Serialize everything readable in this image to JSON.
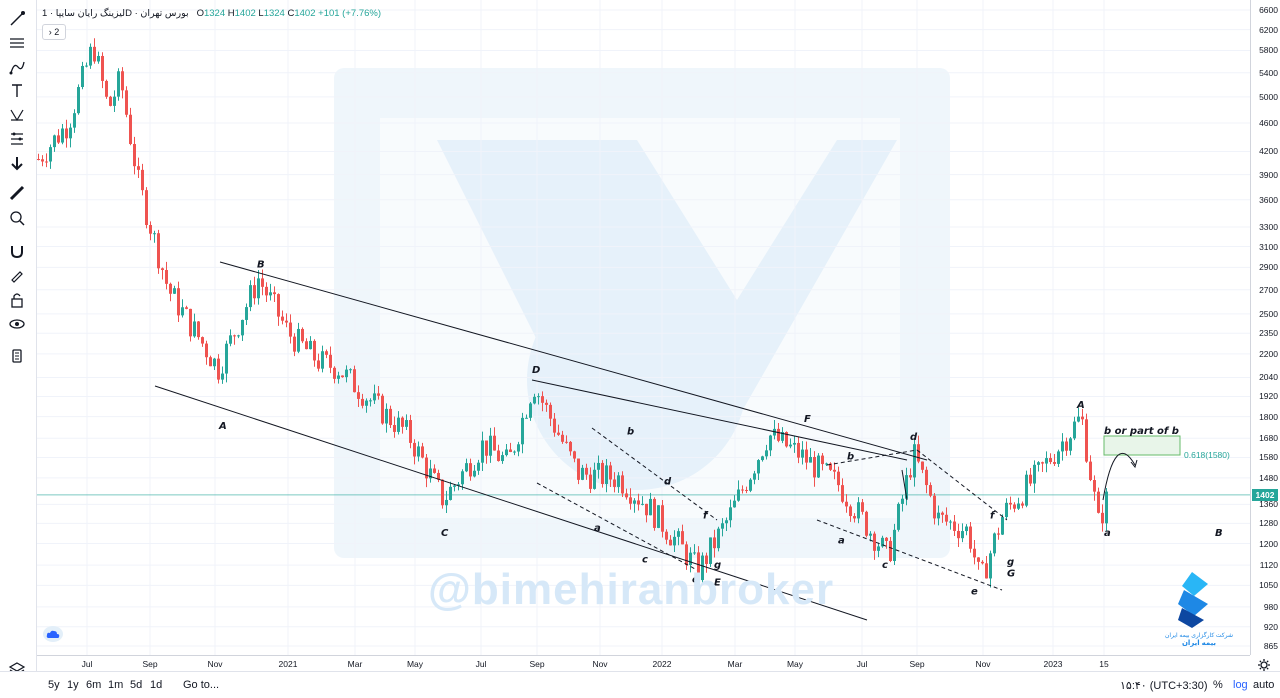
{
  "legend": {
    "symbol": "لیزینگ رایان سایپا",
    "separator": "·",
    "interval": "1D",
    "exchange": "بورس تهران",
    "open_label": "O",
    "open": "1324",
    "high_label": "H",
    "high": "1402",
    "low_label": "L",
    "low": "1324",
    "close_label": "C",
    "close": "1402",
    "change": "+101 (+7.76%)",
    "indicators_collapsed": "2"
  },
  "toolbar_icons": [
    "cursor-cross-icon",
    "trend-line-icon",
    "fib-retracement-icon",
    "brush-icon",
    "text-icon",
    "pattern-icon",
    "prediction-icon",
    "arrow-down-icon",
    "ruler-icon",
    "zoom-in-icon",
    "magnet-icon",
    "lock-drawings-icon",
    "unlock-icon",
    "eye-icon",
    "trash-icon",
    "layers-icon"
  ],
  "bottom_bar": {
    "ranges": [
      "5y",
      "1y",
      "6m",
      "1m",
      "5d",
      "1d"
    ],
    "goto": "Go to...",
    "clock": "۱۵:۴۰ (UTC+3:30)",
    "percent": "%",
    "log": "log",
    "auto": "auto"
  },
  "watermark": "@bimehiranbroker",
  "logo_caption": "شرکت کارگزاری بیمه ایران",
  "logo_subcaption": "بیمه ایران",
  "colors": {
    "up": "#26a69a",
    "down": "#ef5350",
    "watermark": "#d6e8f8",
    "brand": "#1e88e5"
  },
  "chart_data": {
    "type": "candlestick",
    "y_scale": "log",
    "y_ticks": [
      865,
      920,
      980,
      1050,
      1120,
      1200,
      1280,
      1360,
      1480,
      1580,
      1680,
      1800,
      1920,
      2040,
      2200,
      2350,
      2500,
      2700,
      2900,
      3100,
      3300,
      3600,
      3900,
      4200,
      4600,
      5000,
      5400,
      5800,
      6200,
      6600
    ],
    "x_ticks": [
      "Jul",
      "Sep",
      "Nov",
      "2021",
      "Mar",
      "May",
      "Jul",
      "Sep",
      "Nov",
      "2022",
      "Mar",
      "May",
      "Jul",
      "Sep",
      "Nov",
      "2023",
      "15"
    ],
    "last_price": 1402,
    "series": [
      {
        "date": "2020-05",
        "value": 4100
      },
      {
        "date": "2020-06",
        "value": 4600
      },
      {
        "date": "2020-07",
        "value": 5900
      },
      {
        "date": "2020-08",
        "value": 4800
      },
      {
        "date": "2020-08b",
        "value": 5300
      },
      {
        "date": "2020-09",
        "value": 3800
      },
      {
        "date": "2020-10",
        "value": 2700
      },
      {
        "date": "2020-11",
        "value": 2100
      },
      {
        "date": "2020-12",
        "value": 2800
      },
      {
        "date": "2021-01",
        "value": 2350
      },
      {
        "date": "2021-02",
        "value": 2150
      },
      {
        "date": "2021-03",
        "value": 2100
      },
      {
        "date": "2021-04",
        "value": 1850
      },
      {
        "date": "2021-05",
        "value": 1700
      },
      {
        "date": "2021-06",
        "value": 1380
      },
      {
        "date": "2021-07",
        "value": 1650
      },
      {
        "date": "2021-08",
        "value": 1550
      },
      {
        "date": "2021-09",
        "value": 2000
      },
      {
        "date": "2021-10",
        "value": 1500
      },
      {
        "date": "2021-11",
        "value": 1480
      },
      {
        "date": "2021-12",
        "value": 1350
      },
      {
        "date": "2022-01",
        "value": 1200
      },
      {
        "date": "2022-02",
        "value": 1100
      },
      {
        "date": "2022-03",
        "value": 1300
      },
      {
        "date": "2022-04",
        "value": 1700
      },
      {
        "date": "2022-05",
        "value": 1600
      },
      {
        "date": "2022-06",
        "value": 1450
      },
      {
        "date": "2022-07",
        "value": 1150
      },
      {
        "date": "2022-08",
        "value": 1600
      },
      {
        "date": "2022-09",
        "value": 1300
      },
      {
        "date": "2022-10",
        "value": 1250
      },
      {
        "date": "2022-11",
        "value": 1060
      },
      {
        "date": "2022-12",
        "value": 1320
      },
      {
        "date": "2023-01",
        "value": 1500
      },
      {
        "date": "2023-02",
        "value": 1800
      },
      {
        "date": "2023-03",
        "value": 1280
      },
      {
        "date": "2023-03b",
        "value": 1402
      }
    ],
    "annotations": {
      "waves": [
        {
          "label": "B",
          "date": "2020-12",
          "value": 2900
        },
        {
          "label": "A",
          "date": "2020-11",
          "value": 1730
        },
        {
          "label": "C",
          "date": "2021-06",
          "value": 1230
        },
        {
          "label": "D",
          "date": "2021-09",
          "value": 2070
        },
        {
          "label": "a",
          "date": "2021-11",
          "value": 1250
        },
        {
          "label": "b",
          "date": "2021-11b",
          "value": 1700
        },
        {
          "label": "c",
          "date": "2022-01",
          "value": 1130
        },
        {
          "label": "d",
          "date": "2022-01b",
          "value": 1450
        },
        {
          "label": "e",
          "date": "2022-02",
          "value": 1060
        },
        {
          "label": "E",
          "date": "2022-02b",
          "value": 1050
        },
        {
          "label": "f",
          "date": "2022-02c",
          "value": 1300
        },
        {
          "label": "g",
          "date": "2022-02d",
          "value": 1110
        },
        {
          "label": "F",
          "date": "2022-05",
          "value": 1770
        },
        {
          "label": "a",
          "date": "2022-06",
          "value": 1200
        },
        {
          "label": "b",
          "date": "2022-06b",
          "value": 1570
        },
        {
          "label": "c",
          "date": "2022-07",
          "value": 1110
        },
        {
          "label": "d",
          "date": "2022-08",
          "value": 1670
        },
        {
          "label": "e",
          "date": "2022-11",
          "value": 1020
        },
        {
          "label": "f",
          "date": "2022-11b",
          "value": 1300
        },
        {
          "label": "g",
          "date": "2022-11c",
          "value": 1120
        },
        {
          "label": "G",
          "date": "2022-11d",
          "value": 1080
        },
        {
          "label": "A",
          "date": "2023-02",
          "value": 1850
        },
        {
          "label": "a",
          "date": "2023-03",
          "value": 1230
        },
        {
          "label": "B",
          "date": "2023-05",
          "value": 1230
        }
      ],
      "zone_note": "b or part of b",
      "fib_label": "0.618(1580)"
    }
  }
}
